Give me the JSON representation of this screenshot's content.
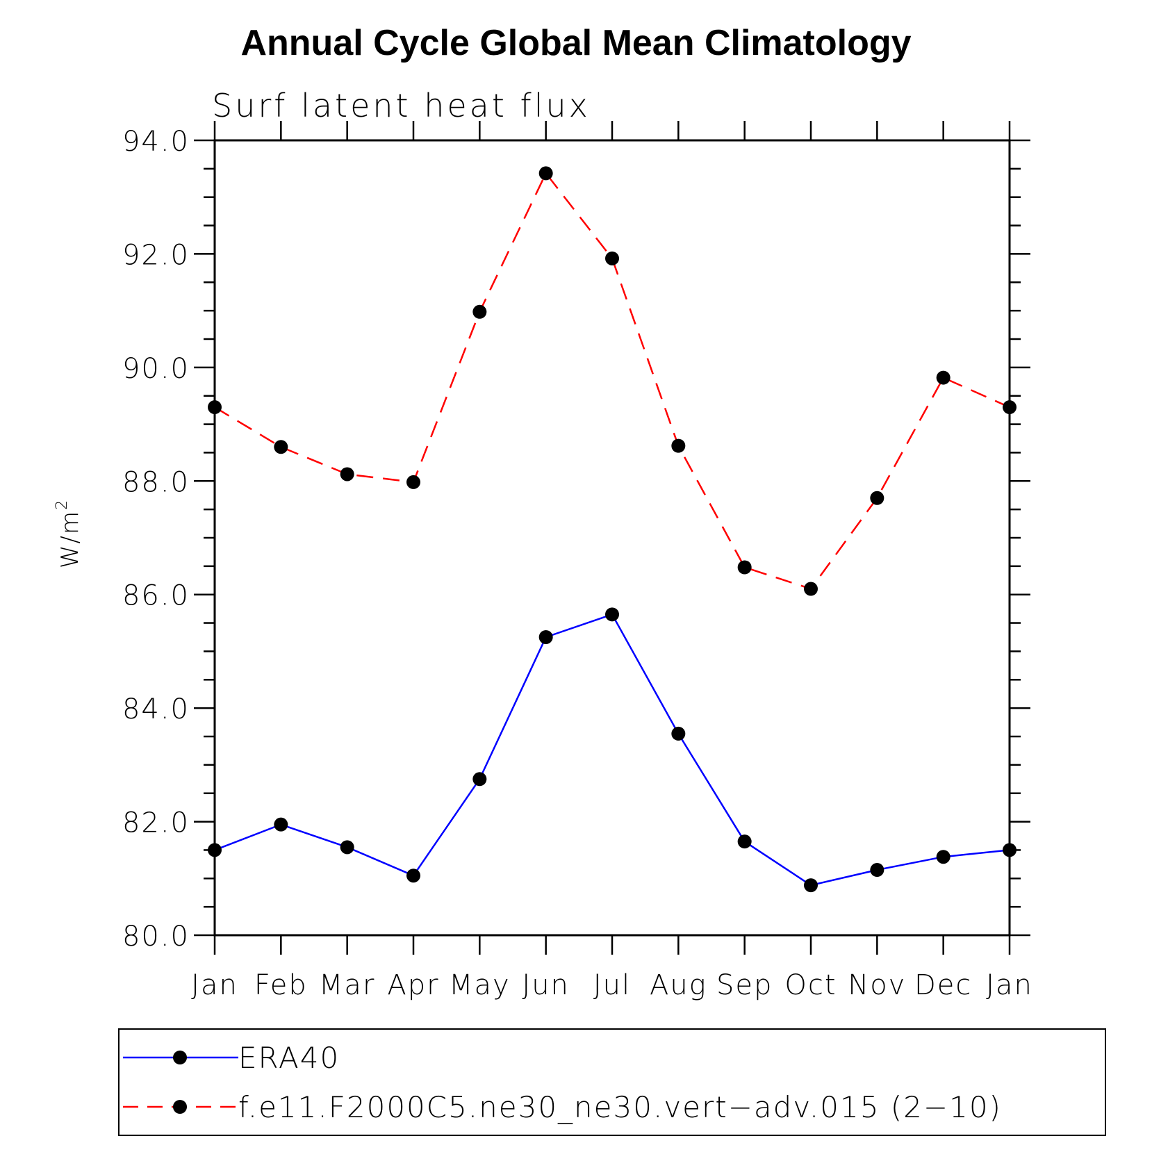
{
  "chart_data": {
    "type": "line",
    "title": "Annual Cycle Global Mean Climatology",
    "subtitle": "Surf latent heat flux",
    "ylabel_base": "W/m",
    "ylabel_sup": "2",
    "categories": [
      "Jan",
      "Feb",
      "Mar",
      "Apr",
      "May",
      "Jun",
      "Jul",
      "Aug",
      "Sep",
      "Oct",
      "Nov",
      "Dec",
      "Jan"
    ],
    "ylim": [
      80.0,
      94.0
    ],
    "yticks": [
      "80.0",
      "82.0",
      "84.0",
      "86.0",
      "88.0",
      "90.0",
      "92.0",
      "94.0"
    ],
    "ytick_values": [
      80,
      82,
      84,
      86,
      88,
      90,
      92,
      94
    ],
    "series": [
      {
        "name": "ERA40",
        "color": "#0000ff",
        "dash": "solid",
        "values": [
          81.5,
          81.95,
          81.55,
          81.05,
          82.75,
          85.25,
          85.65,
          83.55,
          81.65,
          80.88,
          81.15,
          81.38,
          81.5
        ]
      },
      {
        "name": "f.e11.F2000C5.ne30_ne30.vert−adv.015 (2−10)",
        "color": "#ff0000",
        "dash": "dashed",
        "values": [
          89.3,
          88.6,
          88.12,
          87.98,
          90.98,
          93.42,
          91.92,
          88.62,
          86.48,
          86.1,
          87.7,
          89.82,
          89.3
        ]
      }
    ],
    "marker_color": "#000000",
    "legend_placement": "bottom"
  }
}
